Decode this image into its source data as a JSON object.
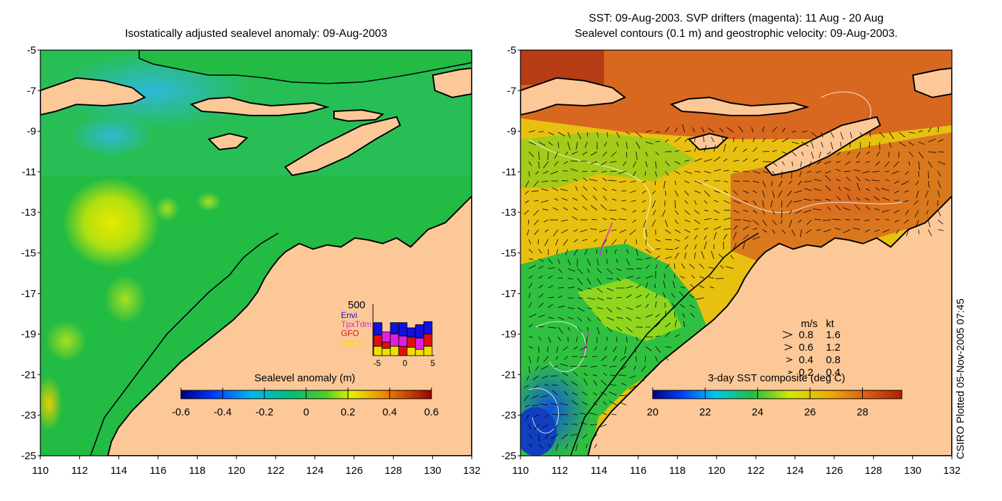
{
  "left_panel": {
    "title": "Isostatically adjusted sealevel anomaly: 09-Aug-2003",
    "colorbar": {
      "title": "Sealevel anomaly (m)",
      "ticks": [
        "-0.6",
        "-0.4",
        "-0.2",
        "0",
        "0.2",
        "0.4",
        "0.6"
      ],
      "range": [
        -0.6,
        0.6
      ]
    },
    "inset": {
      "ymax_label": "500",
      "legend": [
        "Envi",
        "TpxTdm",
        "GFO",
        "Jason"
      ],
      "legend_colors": [
        "#1010e0",
        "#e020e0",
        "#e01010",
        "#f0e000"
      ],
      "xticks": [
        "-5",
        "0",
        "5"
      ],
      "bars": [
        {
          "jason": 90,
          "gfo": 110,
          "tpx": 0,
          "envi": 120
        },
        {
          "jason": 70,
          "gfo": 60,
          "tpx": 100,
          "envi": 0
        },
        {
          "jason": 90,
          "gfo": 0,
          "tpx": 120,
          "envi": 110
        },
        {
          "jason": 0,
          "gfo": 90,
          "tpx": 100,
          "envi": 130
        },
        {
          "jason": 80,
          "gfo": 100,
          "tpx": 0,
          "envi": 90
        },
        {
          "jason": 60,
          "gfo": 0,
          "tpx": 110,
          "envi": 130
        },
        {
          "jason": 90,
          "gfo": 120,
          "tpx": 0,
          "envi": 120
        }
      ]
    }
  },
  "right_panel": {
    "title_line1": "SST: 09-Aug-2003. SVP drifters (magenta): 11 Aug - 20 Aug",
    "title_line2": "Sealevel contours (0.1 m) and geostrophic velocity: 09-Aug-2003.",
    "colorbar": {
      "title": "3-day SST composite (deg C)",
      "ticks": [
        "20",
        "22",
        "24",
        "26",
        "28"
      ],
      "range": [
        20,
        29.5
      ]
    },
    "velocity_legend": {
      "header_ms": "m/s",
      "header_kt": "kt",
      "rows": [
        {
          "ms": "0.8",
          "kt": "1.6"
        },
        {
          "ms": "0.6",
          "kt": "1.2"
        },
        {
          "ms": "0.4",
          "kt": "0.8"
        },
        {
          "ms": "0.2",
          "kt": "0.4"
        }
      ]
    }
  },
  "axes": {
    "xticks": [
      "110",
      "112",
      "114",
      "116",
      "118",
      "120",
      "122",
      "124",
      "126",
      "128",
      "130",
      "132"
    ],
    "yticks": [
      "-5",
      "-7",
      "-9",
      "-11",
      "-13",
      "-15",
      "-17",
      "-19",
      "-21",
      "-23",
      "-25"
    ],
    "lon_range": [
      110,
      132
    ],
    "lat_range": [
      -5,
      -25
    ]
  },
  "credit": "CSIRO Plotted 05-Nov-2005 07:45",
  "colors": {
    "land": "#fcc898",
    "sla_ocean": "#22bb44",
    "sst_warm": "#d87020",
    "coast": "#000000"
  }
}
